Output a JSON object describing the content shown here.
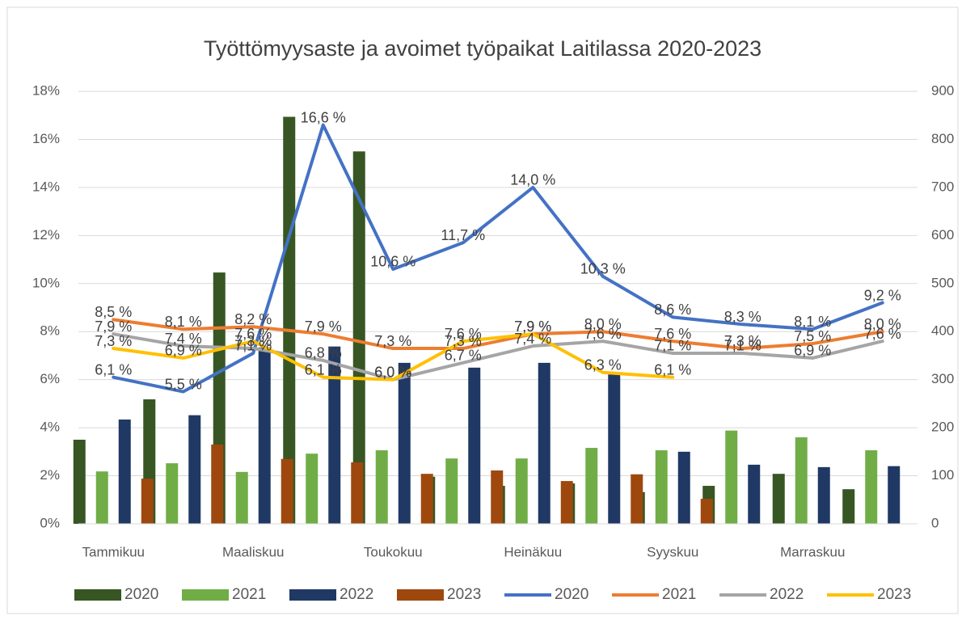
{
  "chart_data": {
    "type": "combo",
    "title": "Työttömyysaste ja avoimet työpaikat Laitilassa 2020-2023",
    "categories": [
      "Tammikuu",
      null,
      "Maaliskuu",
      null,
      "Toukokuu",
      null,
      "Heinäkuu",
      null,
      "Syyskuu",
      null,
      "Marraskuu",
      null
    ],
    "ylim": [
      0,
      18
    ],
    "yticks": [
      {
        "value": 0,
        "label": "0%"
      },
      {
        "value": 2,
        "label": "2%"
      },
      {
        "value": 4,
        "label": "4%"
      },
      {
        "value": 6,
        "label": "6%"
      },
      {
        "value": 8,
        "label": "8%"
      },
      {
        "value": 10,
        "label": "10%"
      },
      {
        "value": 12,
        "label": "12%"
      },
      {
        "value": 14,
        "label": "14%"
      },
      {
        "value": 16,
        "label": "16%"
      },
      {
        "value": 18,
        "label": "18%"
      }
    ],
    "y2lim": [
      0,
      900
    ],
    "y2ticks": [
      0,
      100,
      200,
      300,
      400,
      500,
      600,
      700,
      800,
      900
    ],
    "grid": true,
    "legend": "bottom",
    "series": [
      {
        "name": "2020",
        "type": "bar",
        "axis": "y2",
        "color": "#375623",
        "values": [
          175,
          259,
          523,
          847,
          775,
          98,
          79,
          84,
          66,
          79,
          104,
          72
        ]
      },
      {
        "name": "2021",
        "type": "bar",
        "axis": "y2",
        "color": "#70ad47",
        "values": [
          109,
          126,
          108,
          146,
          153,
          136,
          136,
          158,
          153,
          194,
          180,
          153
        ]
      },
      {
        "name": "2022",
        "type": "bar",
        "axis": "y2",
        "color": "#203864",
        "values": [
          217,
          226,
          367,
          369,
          335,
          325,
          335,
          311,
          150,
          123,
          118,
          120
        ]
      },
      {
        "name": "2023",
        "type": "bar",
        "axis": "y2",
        "color": "#9e480e",
        "values": [
          94,
          165,
          135,
          128,
          104,
          111,
          89,
          103,
          52,
          null,
          null,
          null
        ]
      },
      {
        "name": "2020",
        "type": "line",
        "color": "#4472c4",
        "values": [
          6.1,
          5.5,
          7.1,
          16.6,
          10.6,
          11.7,
          14.0,
          10.3,
          8.6,
          8.3,
          8.1,
          9.2
        ],
        "value_labels": [
          "6,1 %",
          "5,5 %",
          "7,1 %",
          "16,6 %",
          "10,6 %",
          "11,7 %",
          "14,0 %",
          "10,3 %",
          "8,6 %",
          "8,3 %",
          "8,1 %",
          "9,2 %"
        ]
      },
      {
        "name": "2021",
        "type": "line",
        "color": "#ed7d31",
        "values": [
          8.5,
          8.1,
          8.2,
          7.9,
          7.3,
          7.3,
          7.9,
          8.0,
          7.6,
          7.3,
          7.5,
          8.0
        ],
        "value_labels": [
          "8,5 %",
          "8,1 %",
          "8,2 %",
          "7,9 %",
          "7,3 %",
          "7,3 %",
          "7,9 %",
          "8,0 %",
          "7,6 %",
          "7,3 %",
          "7,5 %",
          "8,0 %"
        ]
      },
      {
        "name": "2022",
        "type": "line",
        "color": "#a5a5a5",
        "values": [
          7.9,
          7.4,
          7.3,
          6.8,
          6.0,
          6.7,
          7.4,
          7.6,
          7.1,
          7.1,
          6.9,
          7.6
        ],
        "value_labels": [
          "7,9 %",
          "7,4 %",
          "7,3 %",
          "6,8 %",
          "6,0 %",
          "6,7 %",
          "7,4 %",
          "7,6 %",
          "7,1 %",
          "7,1 %",
          "6,9 %",
          "7,6 %"
        ]
      },
      {
        "name": "2023",
        "type": "line",
        "color": "#ffc000",
        "values": [
          7.3,
          6.9,
          7.6,
          6.1,
          6.0,
          7.6,
          7.9,
          6.3,
          6.1,
          null,
          null,
          null
        ],
        "value_labels": [
          "7,3 %",
          "6,9 %",
          "7,6 %",
          "6,1 %",
          "6,0 %",
          "7,6 %",
          "7,9 %",
          "6,3 %",
          "6,1 %",
          null,
          null,
          null
        ]
      }
    ]
  }
}
